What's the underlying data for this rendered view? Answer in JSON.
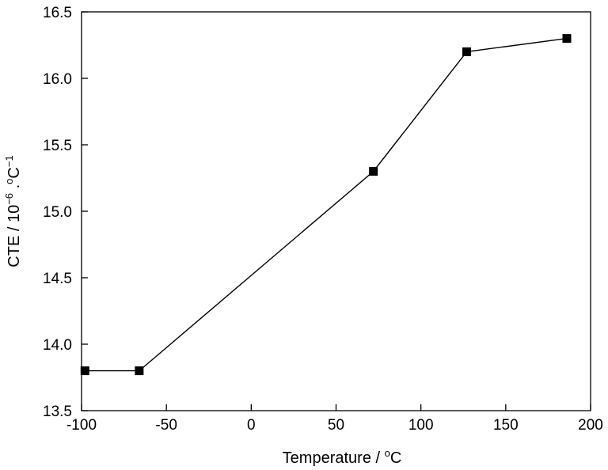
{
  "chart_data": {
    "type": "line",
    "title": "",
    "xlabel": {
      "main": "Temperature / ",
      "sup": "o",
      "tail": "C"
    },
    "ylabel": {
      "main": "CTE / 10",
      "sup1": "−6",
      "mid": " .",
      "sup2": "o",
      "tail": "C",
      "sup3": "−1"
    },
    "xlim": [
      -100,
      200
    ],
    "ylim": [
      13.5,
      16.5
    ],
    "x_ticks": [
      -100,
      -50,
      0,
      50,
      100,
      150,
      200
    ],
    "x_tick_labels": [
      "-100",
      "-50",
      "0",
      "50",
      "100",
      "150",
      "200"
    ],
    "y_ticks": [
      13.5,
      14.0,
      14.5,
      15.0,
      15.5,
      16.0,
      16.5
    ],
    "y_tick_labels": [
      "13.5",
      "14.0",
      "14.5",
      "15.0",
      "15.5",
      "16.0",
      "16.5"
    ],
    "grid": false,
    "series": [
      {
        "marker": "square",
        "color": "#000000",
        "x": [
          -98,
          -66,
          72,
          127,
          186
        ],
        "y": [
          13.8,
          13.8,
          15.3,
          16.2,
          16.3
        ]
      }
    ]
  }
}
